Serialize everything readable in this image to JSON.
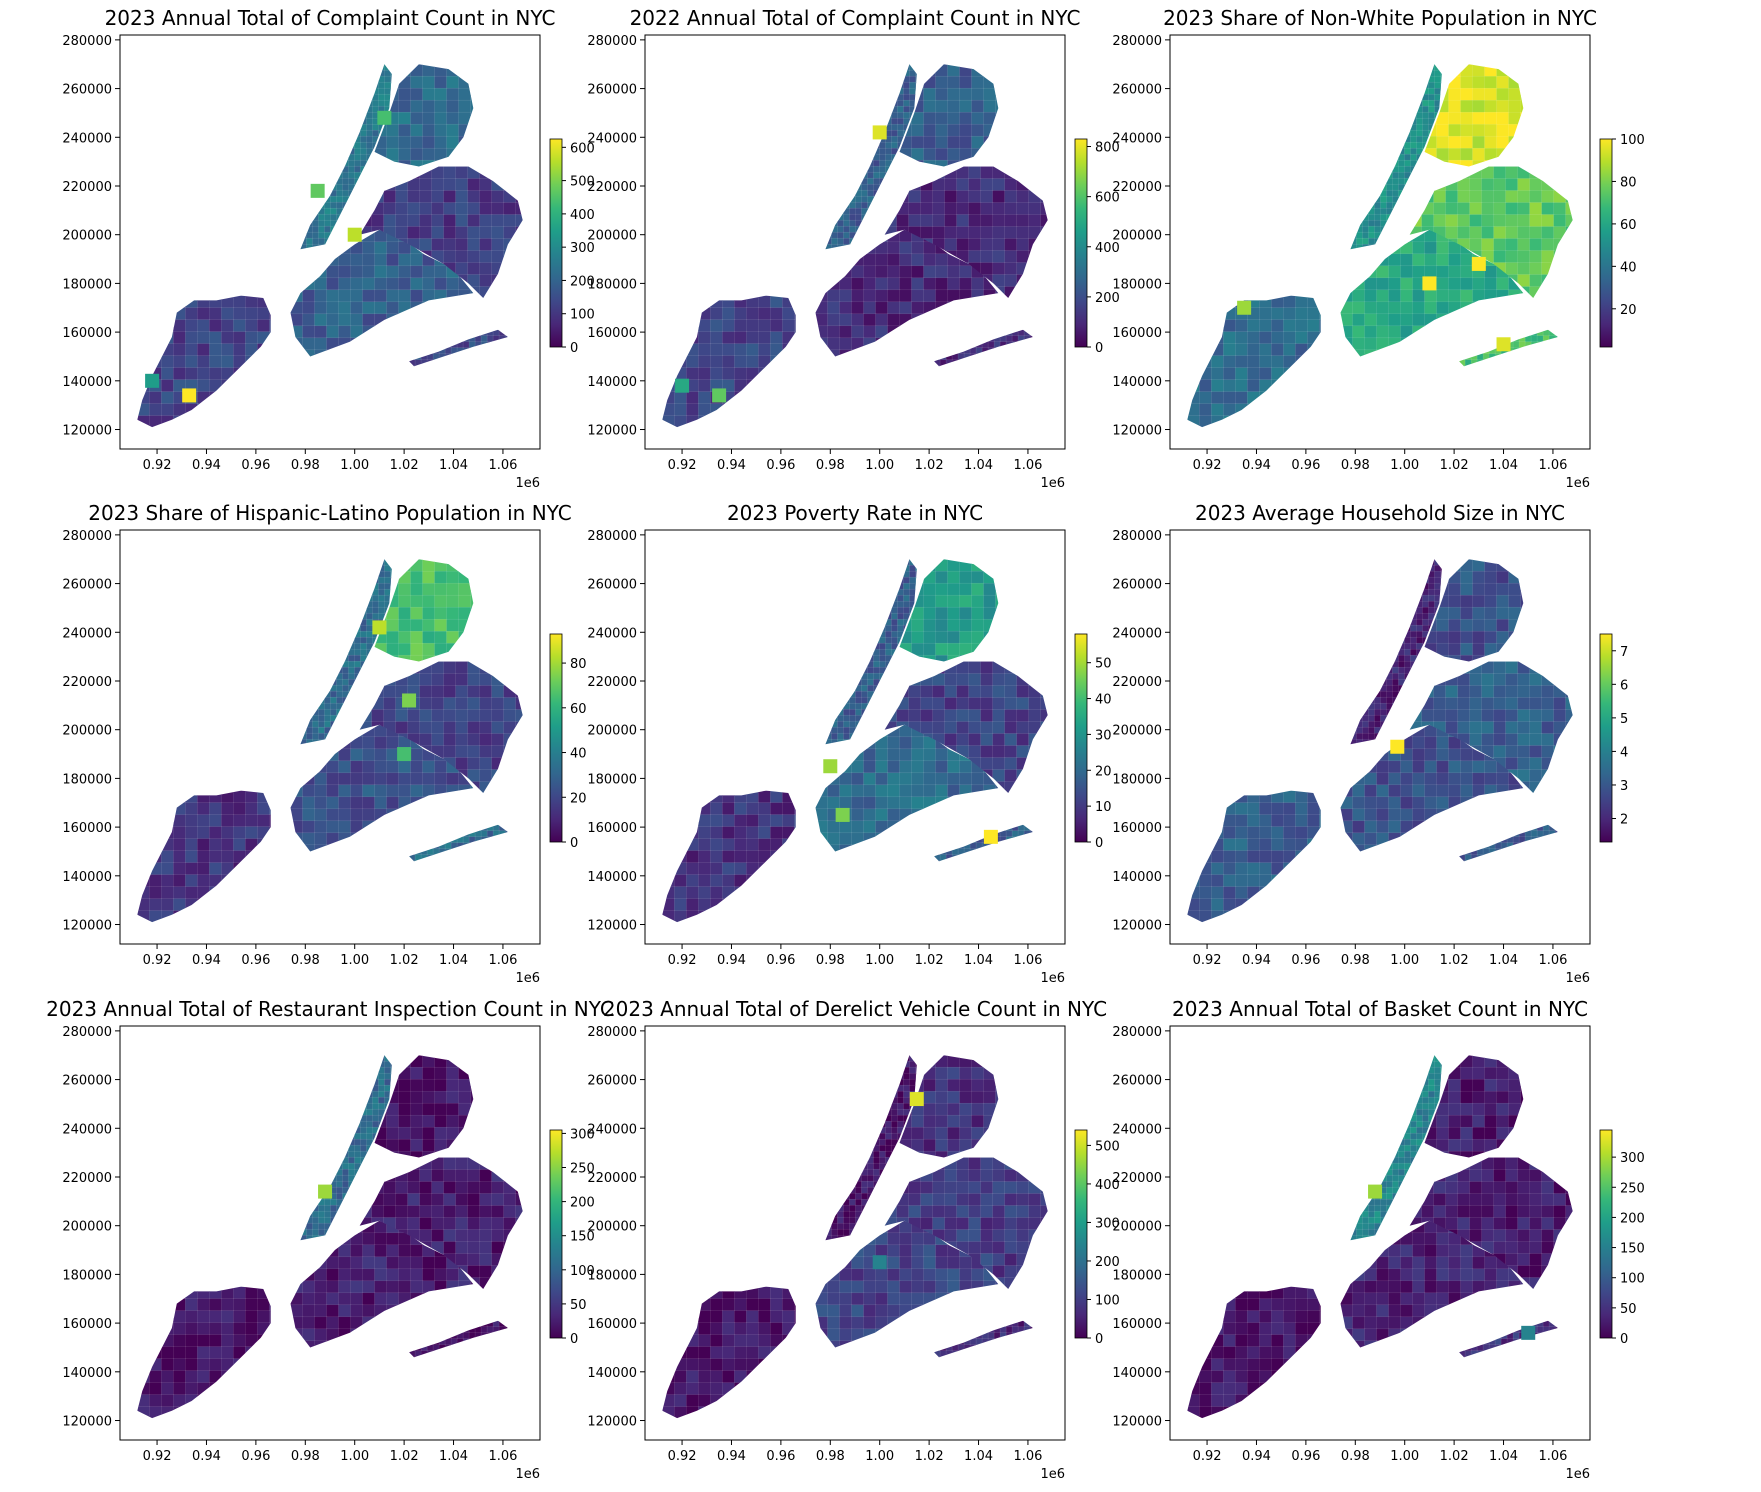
{
  "figure": {
    "x_offset_label": "1e6",
    "x_ticks": [
      "0.92",
      "0.94",
      "0.96",
      "0.98",
      "1.00",
      "1.02",
      "1.04",
      "1.06"
    ],
    "y_ticks": [
      "120000",
      "140000",
      "160000",
      "180000",
      "200000",
      "220000",
      "240000",
      "260000",
      "280000"
    ],
    "colormap": "viridis",
    "colormap_stops": [
      "#440154",
      "#482878",
      "#3e4989",
      "#31688e",
      "#26828e",
      "#1f9e89",
      "#35b779",
      "#6ece58",
      "#b5de2b",
      "#fde725"
    ]
  },
  "chart_data": [
    {
      "type": "choropleth",
      "title": "2023 Annual Total of Complaint Count in NYC",
      "xlim": [
        0.905,
        1.075
      ],
      "ylim": [
        112000,
        282000
      ],
      "colorbar": {
        "min": 0,
        "max": 625,
        "ticks": [
          "0",
          "100",
          "200",
          "300",
          "400",
          "500",
          "600"
        ],
        "values": [
          0,
          100,
          200,
          300,
          400,
          500,
          600
        ]
      },
      "levels": {
        "staten_island": 0.2,
        "brooklyn": 0.3,
        "queens": 0.18,
        "manhattan": 0.4,
        "bronx": 0.35,
        "rockaway": 0.22
      },
      "highlights": [
        {
          "x": 0.933,
          "y": 134000,
          "v": 1.0
        },
        {
          "x": 0.918,
          "y": 140000,
          "v": 0.55
        },
        {
          "x": 0.985,
          "y": 218000,
          "v": 0.75
        },
        {
          "x": 1.012,
          "y": 248000,
          "v": 0.7
        },
        {
          "x": 1.0,
          "y": 200000,
          "v": 0.9
        }
      ]
    },
    {
      "type": "choropleth",
      "title": "2022 Annual Total of Complaint Count in NYC",
      "xlim": [
        0.905,
        1.075
      ],
      "ylim": [
        112000,
        282000
      ],
      "colorbar": {
        "min": 0,
        "max": 830,
        "ticks": [
          "0",
          "200",
          "400",
          "600",
          "800"
        ],
        "values": [
          0,
          200,
          400,
          600,
          800
        ]
      },
      "levels": {
        "staten_island": 0.2,
        "brooklyn": 0.12,
        "queens": 0.12,
        "manhattan": 0.3,
        "bronx": 0.3,
        "rockaway": 0.12
      },
      "highlights": [
        {
          "x": 0.935,
          "y": 134000,
          "v": 0.75
        },
        {
          "x": 0.92,
          "y": 138000,
          "v": 0.6
        },
        {
          "x": 1.0,
          "y": 242000,
          "v": 0.95
        }
      ]
    },
    {
      "type": "choropleth",
      "title": "2023 Share of Non-White Population in NYC",
      "xlim": [
        0.905,
        1.075
      ],
      "ylim": [
        112000,
        282000
      ],
      "colorbar": {
        "min": 2,
        "max": 100,
        "ticks": [
          "20",
          "40",
          "60",
          "80",
          "100"
        ],
        "values": [
          20,
          40,
          60,
          80,
          100
        ]
      },
      "levels": {
        "staten_island": 0.35,
        "brooklyn": 0.6,
        "queens": 0.75,
        "manhattan": 0.5,
        "bronx": 0.95,
        "rockaway": 0.7
      },
      "highlights": [
        {
          "x": 1.03,
          "y": 188000,
          "v": 1.0
        },
        {
          "x": 1.01,
          "y": 180000,
          "v": 1.0
        },
        {
          "x": 0.935,
          "y": 170000,
          "v": 0.85
        },
        {
          "x": 1.04,
          "y": 155000,
          "v": 0.95
        }
      ]
    },
    {
      "type": "choropleth",
      "title": "2023 Share of Hispanic-Latino Population in NYC",
      "xlim": [
        0.905,
        1.075
      ],
      "ylim": [
        112000,
        282000
      ],
      "colorbar": {
        "min": 0,
        "max": 93,
        "ticks": [
          "0",
          "20",
          "40",
          "60",
          "80"
        ],
        "values": [
          0,
          20,
          40,
          60,
          80
        ]
      },
      "levels": {
        "staten_island": 0.15,
        "brooklyn": 0.25,
        "queens": 0.2,
        "manhattan": 0.35,
        "bronx": 0.7,
        "rockaway": 0.35
      },
      "highlights": [
        {
          "x": 1.01,
          "y": 242000,
          "v": 0.9
        },
        {
          "x": 1.022,
          "y": 212000,
          "v": 0.8
        },
        {
          "x": 1.02,
          "y": 190000,
          "v": 0.7
        }
      ]
    },
    {
      "type": "choropleth",
      "title": "2023 Poverty Rate in NYC",
      "xlim": [
        0.905,
        1.075
      ],
      "ylim": [
        112000,
        282000
      ],
      "colorbar": {
        "min": 0,
        "max": 58,
        "ticks": [
          "0",
          "10",
          "20",
          "30",
          "40",
          "50"
        ],
        "values": [
          0,
          10,
          20,
          30,
          40,
          50
        ]
      },
      "levels": {
        "staten_island": 0.15,
        "brooklyn": 0.35,
        "queens": 0.2,
        "manhattan": 0.3,
        "bronx": 0.55,
        "rockaway": 0.3
      },
      "highlights": [
        {
          "x": 1.045,
          "y": 156000,
          "v": 1.0
        },
        {
          "x": 0.985,
          "y": 165000,
          "v": 0.8
        },
        {
          "x": 0.98,
          "y": 185000,
          "v": 0.85
        }
      ]
    },
    {
      "type": "choropleth",
      "title": "2023 Average Household Size in NYC",
      "xlim": [
        0.905,
        1.075
      ],
      "ylim": [
        112000,
        282000
      ],
      "colorbar": {
        "min": 1.3,
        "max": 7.5,
        "ticks": [
          "2",
          "3",
          "4",
          "5",
          "6",
          "7"
        ],
        "values": [
          2,
          3,
          4,
          5,
          6,
          7
        ]
      },
      "levels": {
        "staten_island": 0.3,
        "brooklyn": 0.25,
        "queens": 0.3,
        "manhattan": 0.1,
        "bronx": 0.25,
        "rockaway": 0.28
      },
      "highlights": [
        {
          "x": 0.997,
          "y": 193000,
          "v": 1.0
        }
      ]
    },
    {
      "type": "choropleth",
      "title": "2023 Annual Total of Restaurant Inspection Count in NYC",
      "xlim": [
        0.905,
        1.075
      ],
      "ylim": [
        112000,
        282000
      ],
      "colorbar": {
        "min": 0,
        "max": 305,
        "ticks": [
          "0",
          "50",
          "100",
          "150",
          "200",
          "250",
          "300"
        ],
        "values": [
          0,
          50,
          100,
          150,
          200,
          250,
          300
        ]
      },
      "levels": {
        "staten_island": 0.05,
        "brooklyn": 0.08,
        "queens": 0.08,
        "manhattan": 0.35,
        "bronx": 0.05,
        "rockaway": 0.05
      },
      "highlights": [
        {
          "x": 0.988,
          "y": 214000,
          "v": 0.85
        }
      ]
    },
    {
      "type": "choropleth",
      "title": "2023 Annual Total of Derelict Vehicle Count in NYC",
      "xlim": [
        0.905,
        1.075
      ],
      "ylim": [
        112000,
        282000
      ],
      "colorbar": {
        "min": 0,
        "max": 540,
        "ticks": [
          "0",
          "100",
          "200",
          "300",
          "400",
          "500"
        ],
        "values": [
          0,
          100,
          200,
          300,
          400,
          500
        ]
      },
      "levels": {
        "staten_island": 0.05,
        "brooklyn": 0.2,
        "queens": 0.18,
        "manhattan": 0.05,
        "bronx": 0.15,
        "rockaway": 0.12
      },
      "highlights": [
        {
          "x": 1.015,
          "y": 252000,
          "v": 0.95
        },
        {
          "x": 1.0,
          "y": 185000,
          "v": 0.45
        }
      ]
    },
    {
      "type": "choropleth",
      "title": "2023 Annual Total of Basket Count in NYC",
      "xlim": [
        0.905,
        1.075
      ],
      "ylim": [
        112000,
        282000
      ],
      "colorbar": {
        "min": 0,
        "max": 345,
        "ticks": [
          "0",
          "50",
          "100",
          "150",
          "200",
          "250",
          "300"
        ],
        "values": [
          0,
          50,
          100,
          150,
          200,
          250,
          300
        ]
      },
      "levels": {
        "staten_island": 0.05,
        "brooklyn": 0.1,
        "queens": 0.08,
        "manhattan": 0.45,
        "bronx": 0.08,
        "rockaway": 0.15
      },
      "highlights": [
        {
          "x": 0.988,
          "y": 214000,
          "v": 0.85
        },
        {
          "x": 1.05,
          "y": 156000,
          "v": 0.45
        }
      ]
    }
  ]
}
